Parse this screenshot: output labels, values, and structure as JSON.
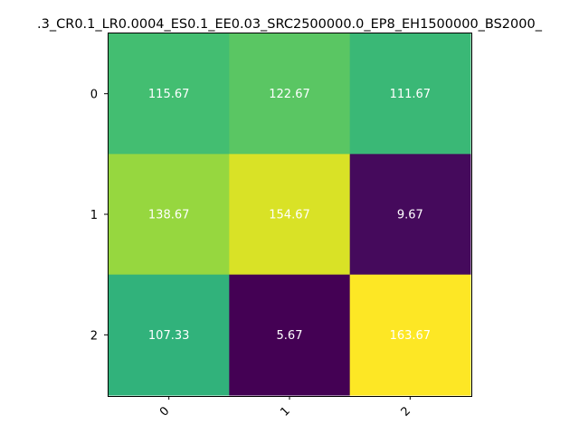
{
  "chart_data": {
    "type": "heatmap",
    "title": ".3_CR0.1_LR0.0004_ES0.1_EE0.03_SRC2500000.0_EP8_EH1500000_BS2000_",
    "x_ticks": [
      "0",
      "1",
      "2"
    ],
    "y_ticks": [
      "0",
      "1",
      "2"
    ],
    "values": [
      [
        115.67,
        122.67,
        111.67
      ],
      [
        138.67,
        154.67,
        9.67
      ],
      [
        107.33,
        5.67,
        163.67
      ]
    ],
    "value_labels": [
      [
        "115.67",
        "122.67",
        "111.67"
      ],
      [
        "138.67",
        "154.67",
        "9.67"
      ],
      [
        "107.33",
        "5.67",
        "163.67"
      ]
    ],
    "colormap": "viridis",
    "annotation_color": "#ffffff",
    "grid": false,
    "x_tick_rotation": "45 degrees"
  }
}
